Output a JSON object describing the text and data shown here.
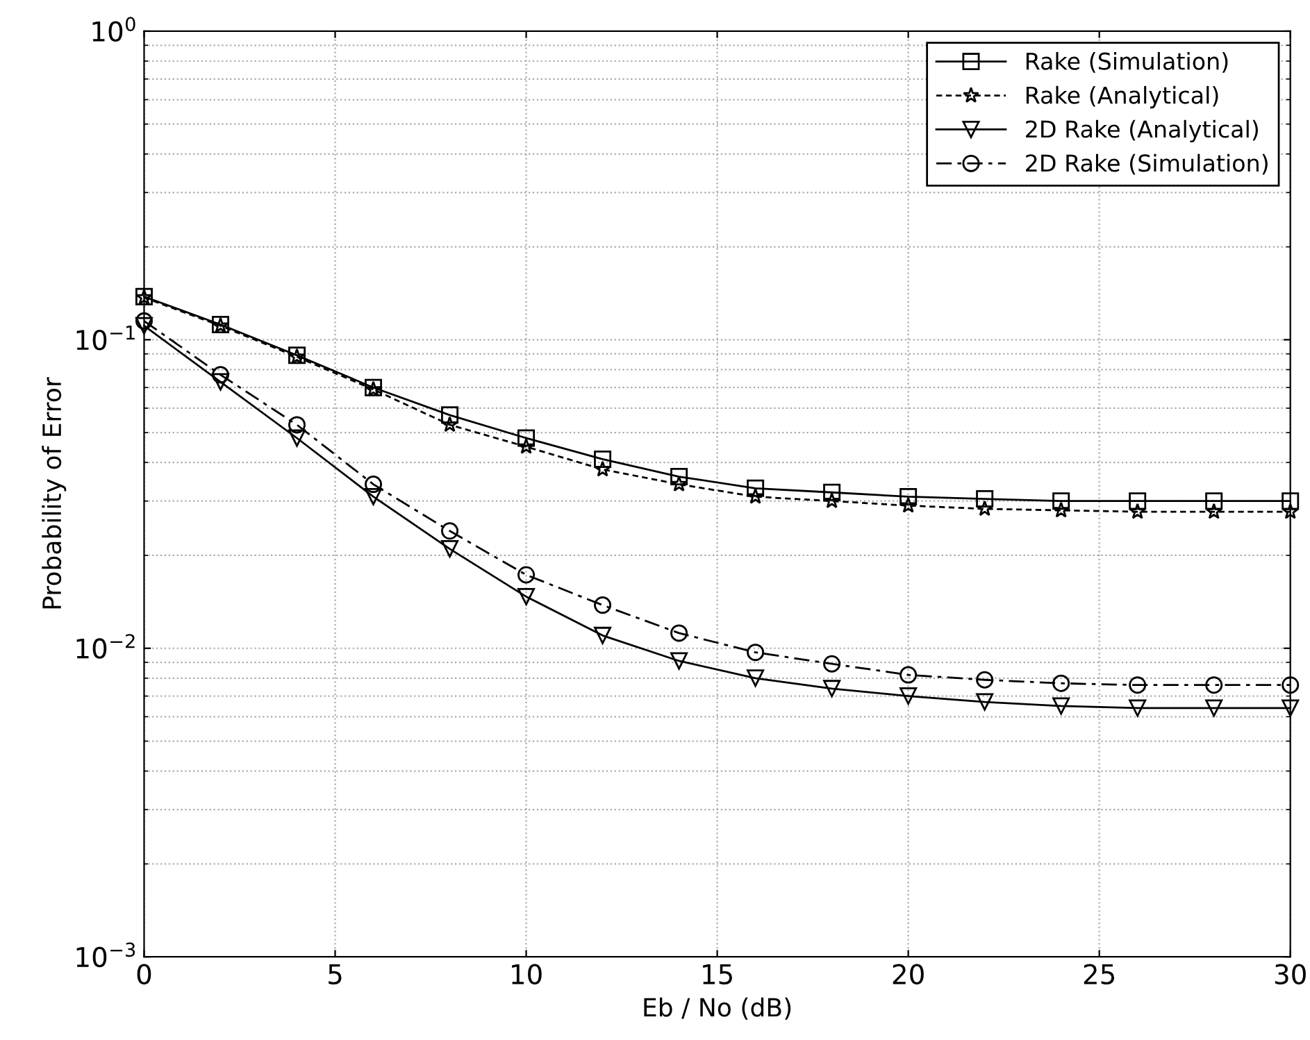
{
  "chart_data": {
    "type": "line",
    "xlabel": "Eb / No (dB)",
    "ylabel": "Probability of Error",
    "x": [
      0,
      2,
      4,
      6,
      8,
      10,
      12,
      14,
      16,
      18,
      20,
      22,
      24,
      26,
      28,
      30
    ],
    "series": [
      {
        "name": "Rake (Simulation)",
        "color": "#000000",
        "marker": "square",
        "line_style": "solid",
        "values": [
          0.138,
          0.112,
          0.089,
          0.07,
          0.057,
          0.048,
          0.041,
          0.036,
          0.033,
          0.032,
          0.031,
          0.0305,
          0.03,
          0.03,
          0.03,
          0.03
        ]
      },
      {
        "name": "Rake (Analytical)",
        "color": "#000000",
        "marker": "star",
        "line_style": "dotted",
        "values": [
          0.137,
          0.111,
          0.088,
          0.069,
          0.053,
          0.045,
          0.038,
          0.034,
          0.031,
          0.03,
          0.029,
          0.0283,
          0.028,
          0.0277,
          0.0277,
          0.0277
        ]
      },
      {
        "name": "2D Rake (Analytical)",
        "color": "#000000",
        "marker": "triangle",
        "line_style": "solid",
        "values": [
          0.111,
          0.073,
          0.048,
          0.031,
          0.021,
          0.0147,
          0.011,
          0.0091,
          0.008,
          0.0074,
          0.007,
          0.0067,
          0.0065,
          0.0064,
          0.0064,
          0.0064
        ]
      },
      {
        "name": "2D Rake (Simulation)",
        "color": "#000000",
        "marker": "circle",
        "line_style": "dashed",
        "values": [
          0.115,
          0.077,
          0.053,
          0.034,
          0.024,
          0.0173,
          0.0138,
          0.0112,
          0.0097,
          0.0089,
          0.0082,
          0.0079,
          0.0077,
          0.0076,
          0.0076,
          0.0076
        ]
      }
    ],
    "log": "y",
    "xlim": [
      0,
      30
    ],
    "xticks": [
      0,
      5,
      10,
      15,
      20,
      25,
      30
    ],
    "ylim": [
      0.001,
      1
    ],
    "yticks": [
      {
        "value": 0.001,
        "label": "10$^{−3}$"
      },
      {
        "value": 0.01,
        "label": "10$^{−2}$"
      },
      {
        "value": 0.1,
        "label": "10$^{−1}$"
      },
      {
        "value": 1,
        "label": "10$^{0}$"
      }
    ],
    "grid": true,
    "legend": "top right"
  }
}
